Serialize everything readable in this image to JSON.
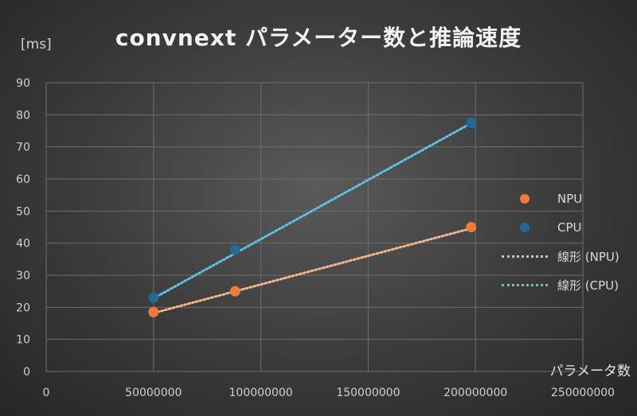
{
  "chart_data": {
    "type": "scatter",
    "title": "convnext パラメーター数と推論速度",
    "ylabel": "[ms]",
    "xlabel": "パラメータ数",
    "xlim": [
      0,
      250000000
    ],
    "ylim": [
      0,
      90
    ],
    "x_ticks": [
      "0",
      "50000000",
      "100000000",
      "150000000",
      "200000000",
      "250000000"
    ],
    "y_ticks": [
      "0",
      "10",
      "20",
      "30",
      "40",
      "50",
      "60",
      "70",
      "80",
      "90"
    ],
    "grid": true,
    "legend_position": "right",
    "series": [
      {
        "name": "NPU",
        "color": "#f07a3a",
        "points": [
          [
            50000000,
            18.5
          ],
          [
            88000000,
            25
          ],
          [
            198000000,
            45
          ]
        ]
      },
      {
        "name": "CPU",
        "color": "#1f6b96",
        "points": [
          [
            50000000,
            23
          ],
          [
            88000000,
            38
          ],
          [
            198000000,
            77.5
          ]
        ]
      }
    ],
    "trendlines": [
      {
        "name": "線形 (NPU)",
        "color": "#f5b78e",
        "from": [
          50000000,
          18.2
        ],
        "to": [
          198000000,
          44.6
        ]
      },
      {
        "name": "線形 (CPU)",
        "color": "#5fc3e4",
        "from": [
          50000000,
          22.8
        ],
        "to": [
          198000000,
          77.4
        ]
      }
    ]
  }
}
